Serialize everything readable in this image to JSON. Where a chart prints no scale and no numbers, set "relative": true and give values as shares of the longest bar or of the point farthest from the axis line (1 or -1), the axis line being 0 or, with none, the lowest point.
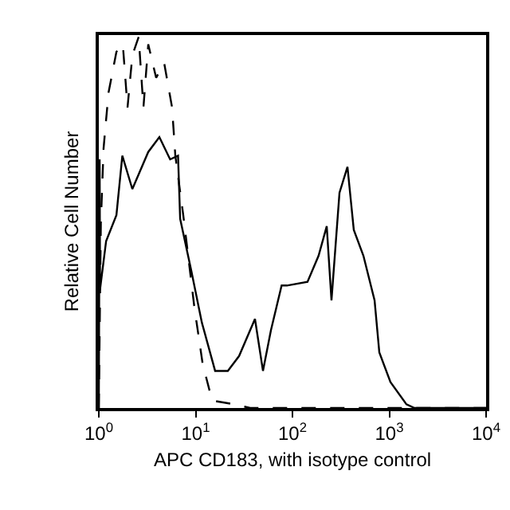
{
  "chart_data": {
    "type": "line",
    "xlabel": "APC CD183, with isotype control",
    "ylabel": "Relative Cell Number",
    "relative": true,
    "log": "x",
    "xlim": [
      1,
      10000
    ],
    "xticks": [
      {
        "value": 1,
        "label": "10$^{0}$"
      },
      {
        "value": 10,
        "label": "10$^{1}$"
      },
      {
        "value": 100,
        "label": "10$^{2}$"
      },
      {
        "value": 1000,
        "label": "10$^{3}$"
      },
      {
        "value": 10000,
        "label": "10$^{4}$"
      }
    ],
    "grid": false,
    "marker": "none",
    "series": [
      {
        "color": "#000000",
        "line_style": "solid",
        "x": [
          1,
          1.02,
          1.03,
          1.19,
          1.52,
          1.75,
          2.22,
          3.24,
          4.22,
          5.45,
          6.58,
          6.92,
          9.02,
          11.6,
          15.9,
          21.5,
          28.1,
          41,
          49.6,
          60,
          77.3,
          87.5,
          143,
          186,
          226,
          253,
          306,
          370,
          430,
          541,
          705,
          789,
          1028,
          1503,
          1820,
          10000
        ],
        "values": [
          0,
          0.67,
          0.32,
          0.45,
          0.52,
          0.68,
          0.59,
          0.69,
          0.73,
          0.67,
          0.68,
          0.51,
          0.37,
          0.23,
          0.1,
          0.1,
          0.14,
          0.24,
          0.1,
          0.21,
          0.33,
          0.33,
          0.34,
          0.41,
          0.49,
          0.29,
          0.58,
          0.65,
          0.48,
          0.41,
          0.29,
          0.15,
          0.07,
          0.01,
          0,
          0
        ]
      },
      {
        "color": "#000000",
        "line_style": "dashed",
        "x": [
          1,
          1.05,
          1.12,
          1.26,
          1.52,
          1.77,
          1.98,
          2.22,
          2.58,
          2.89,
          3.24,
          3.91,
          4.73,
          5.71,
          6.17,
          7.45,
          9.72,
          11.8,
          14.8,
          25.1,
          36.6,
          10000
        ],
        "values": [
          0,
          0.5,
          0.7,
          0.85,
          0.96,
          0.98,
          0.81,
          0.95,
          1,
          0.81,
          0.98,
          0.89,
          0.93,
          0.81,
          0.68,
          0.52,
          0.27,
          0.12,
          0.02,
          0.01,
          0,
          0
        ]
      }
    ]
  }
}
